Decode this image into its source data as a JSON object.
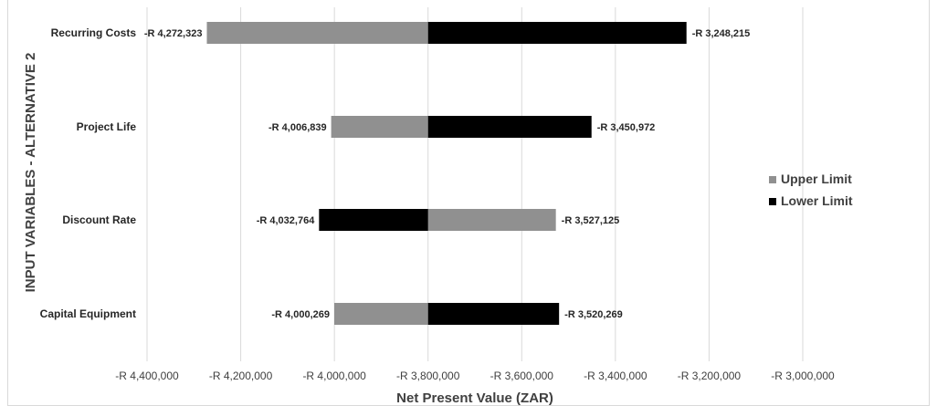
{
  "chart_data": {
    "type": "bar",
    "orientation": "horizontal",
    "subtype": "tornado",
    "base_value": -3800000,
    "categories": [
      "Recurring Costs",
      "Project Life",
      "Discount Rate",
      "Capital Equipment"
    ],
    "series": [
      {
        "name": "Upper Limit",
        "color": "#909090",
        "values": [
          -4272323,
          -4006839,
          -3527125,
          -4000269
        ]
      },
      {
        "name": "Lower Limit",
        "color": "#000000",
        "values": [
          -3248215,
          -3450972,
          -4032764,
          -3520269
        ]
      }
    ],
    "data_labels": [
      {
        "left": "-R 4,272,323",
        "right": "-R 3,248,215"
      },
      {
        "left": "-R 4,006,839",
        "right": "-R 3,450,972"
      },
      {
        "left": "-R 4,032,764",
        "right": "-R 3,527,125"
      },
      {
        "left": "-R 4,000,269",
        "right": "-R 3,520,269"
      }
    ],
    "xlim": [
      -4400000,
      -3000000
    ],
    "x_ticks": [
      -4400000,
      -4200000,
      -4000000,
      -3800000,
      -3600000,
      -3400000,
      -3200000,
      -3000000
    ],
    "x_tick_labels": [
      "-R 4,400,000",
      "-R 4,200,000",
      "-R 4,000,000",
      "-R 3,800,000",
      "-R 3,600,000",
      "-R 3,400,000",
      "-R 3,200,000",
      "-R 3,000,000"
    ],
    "xlabel": "Net Present Value (ZAR)",
    "ylabel": "INPUT VARIABLES - ALTERNATIVE 2",
    "grid": "vertical",
    "legend_position": "right",
    "legend": [
      {
        "label": "Upper Limit",
        "color": "#909090"
      },
      {
        "label": "Lower Limit",
        "color": "#000000"
      }
    ]
  }
}
